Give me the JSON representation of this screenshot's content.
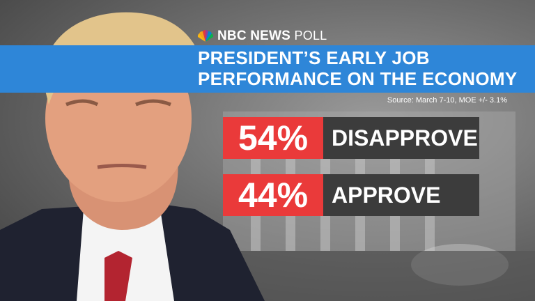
{
  "logo": {
    "network": "NBC NEWS",
    "poll": "POLL"
  },
  "title": {
    "line1": "PRESIDENT’S EARLY JOB",
    "line2": "PERFORMANCE ON THE ECONOMY"
  },
  "source": "Source: March 7-10, MOE +/- 3.1%",
  "results": [
    {
      "percent": "54%",
      "label": "DISAPPROVE"
    },
    {
      "percent": "44%",
      "label": "APPROVE"
    }
  ],
  "colors": {
    "title_bar": "#2e86d8",
    "percent_box": "#ea3a3a",
    "label_box": "#3c3c3c"
  },
  "icons": [
    "nbc-peacock-icon"
  ]
}
